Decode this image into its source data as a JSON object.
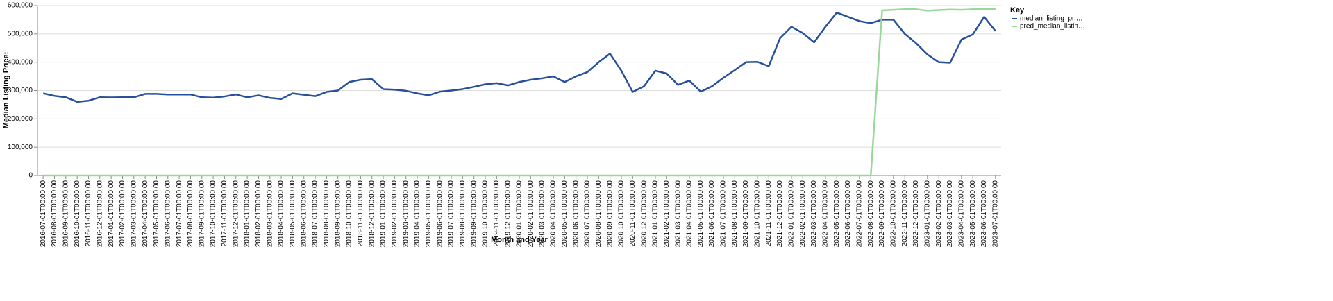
{
  "chart_data": {
    "type": "line",
    "x_label": "Month and Year",
    "y_label": "Median Listing Price:",
    "legend_title": "Key",
    "legend_position": "right",
    "grid": true,
    "categories": [
      "2016-07-01T00:00:00",
      "2016-08-01T00:00:00",
      "2016-09-01T00:00:00",
      "2016-10-01T00:00:00",
      "2016-11-01T00:00:00",
      "2016-12-01T00:00:00",
      "2017-01-01T00:00:00",
      "2017-02-01T00:00:00",
      "2017-03-01T00:00:00",
      "2017-04-01T00:00:00",
      "2017-05-01T00:00:00",
      "2017-06-01T00:00:00",
      "2017-07-01T00:00:00",
      "2017-08-01T00:00:00",
      "2017-09-01T00:00:00",
      "2017-10-01T00:00:00",
      "2017-11-01T00:00:00",
      "2017-12-01T00:00:00",
      "2018-01-01T00:00:00",
      "2018-02-01T00:00:00",
      "2018-03-01T00:00:00",
      "2018-04-01T00:00:00",
      "2018-05-01T00:00:00",
      "2018-06-01T00:00:00",
      "2018-07-01T00:00:00",
      "2018-08-01T00:00:00",
      "2018-09-01T00:00:00",
      "2018-10-01T00:00:00",
      "2018-11-01T00:00:00",
      "2018-12-01T00:00:00",
      "2019-01-01T00:00:00",
      "2019-02-01T00:00:00",
      "2019-03-01T00:00:00",
      "2019-04-01T00:00:00",
      "2019-05-01T00:00:00",
      "2019-06-01T00:00:00",
      "2019-07-01T00:00:00",
      "2019-08-01T00:00:00",
      "2019-09-01T00:00:00",
      "2019-10-01T00:00:00",
      "2019-11-01T00:00:00",
      "2019-12-01T00:00:00",
      "2020-01-01T00:00:00",
      "2020-02-01T00:00:00",
      "2020-03-01T00:00:00",
      "2020-04-01T00:00:00",
      "2020-05-01T00:00:00",
      "2020-06-01T00:00:00",
      "2020-07-01T00:00:00",
      "2020-08-01T00:00:00",
      "2020-09-01T00:00:00",
      "2020-10-01T00:00:00",
      "2020-11-01T00:00:00",
      "2020-12-01T00:00:00",
      "2021-01-01T00:00:00",
      "2021-02-01T00:00:00",
      "2021-03-01T00:00:00",
      "2021-04-01T00:00:00",
      "2021-05-01T00:00:00",
      "2021-06-01T00:00:00",
      "2021-07-01T00:00:00",
      "2021-08-01T00:00:00",
      "2021-09-01T00:00:00",
      "2021-10-01T00:00:00",
      "2021-11-01T00:00:00",
      "2021-12-01T00:00:00",
      "2022-01-01T00:00:00",
      "2022-02-01T00:00:00",
      "2022-03-01T00:00:00",
      "2022-04-01T00:00:00",
      "2022-05-01T00:00:00",
      "2022-06-01T00:00:00",
      "2022-07-01T00:00:00",
      "2022-08-01T00:00:00",
      "2022-09-01T00:00:00",
      "2022-10-01T00:00:00",
      "2022-11-01T00:00:00",
      "2022-12-01T00:00:00",
      "2023-01-01T00:00:00",
      "2023-02-01T00:00:00",
      "2023-03-01T00:00:00",
      "2023-04-01T00:00:00",
      "2023-05-01T00:00:00",
      "2023-06-01T00:00:00",
      "2023-07-01T00:00:00"
    ],
    "series": [
      {
        "name": "median_listing_pri…",
        "color": "#27509b",
        "values": [
          290000,
          281000,
          276000,
          260000,
          264000,
          276000,
          275500,
          276000,
          276000,
          288000,
          288000,
          286000,
          286000,
          286000,
          276000,
          275000,
          279000,
          286000,
          276000,
          283000,
          274000,
          270000,
          290000,
          285000,
          280000,
          295000,
          300000,
          330000,
          338000,
          340000,
          305000,
          303000,
          299000,
          290000,
          283000,
          296000,
          300000,
          305000,
          313000,
          322000,
          326000,
          318000,
          330000,
          338000,
          343000,
          350000,
          330000,
          350000,
          365000,
          400000,
          430000,
          370000,
          295000,
          315000,
          370000,
          360000,
          320000,
          335000,
          296000,
          315000,
          345000,
          372000,
          400000,
          401000,
          386000,
          485000,
          525000,
          503000,
          470000,
          525000,
          575000,
          560000,
          545000,
          538000,
          550000,
          550000,
          500000,
          467000,
          427000,
          400000,
          398000,
          480000,
          498000,
          560000,
          510000
        ]
      },
      {
        "name": "pred_median_listin…",
        "color": "#98d89a",
        "values": [
          0,
          0,
          0,
          0,
          0,
          0,
          0,
          0,
          0,
          0,
          0,
          0,
          0,
          0,
          0,
          0,
          0,
          0,
          0,
          0,
          0,
          0,
          0,
          0,
          0,
          0,
          0,
          0,
          0,
          0,
          0,
          0,
          0,
          0,
          0,
          0,
          0,
          0,
          0,
          0,
          0,
          0,
          0,
          0,
          0,
          0,
          0,
          0,
          0,
          0,
          0,
          0,
          0,
          0,
          0,
          0,
          0,
          0,
          0,
          0,
          0,
          0,
          0,
          0,
          0,
          0,
          0,
          0,
          0,
          0,
          0,
          0,
          0,
          0,
          583000,
          585000,
          587000,
          587000,
          582000,
          584000,
          586000,
          585000,
          587000,
          588000,
          588000
        ]
      }
    ],
    "ylim": [
      0,
      600000
    ],
    "yticks": [
      {
        "value": 0,
        "label": "0"
      },
      {
        "value": 100000,
        "label": "100,000"
      },
      {
        "value": 200000,
        "label": "200,000"
      },
      {
        "value": 300000,
        "label": "300,000"
      },
      {
        "value": 400000,
        "label": "400,000"
      },
      {
        "value": 500000,
        "label": "500,000"
      },
      {
        "value": 600000,
        "label": "600,000"
      }
    ]
  }
}
